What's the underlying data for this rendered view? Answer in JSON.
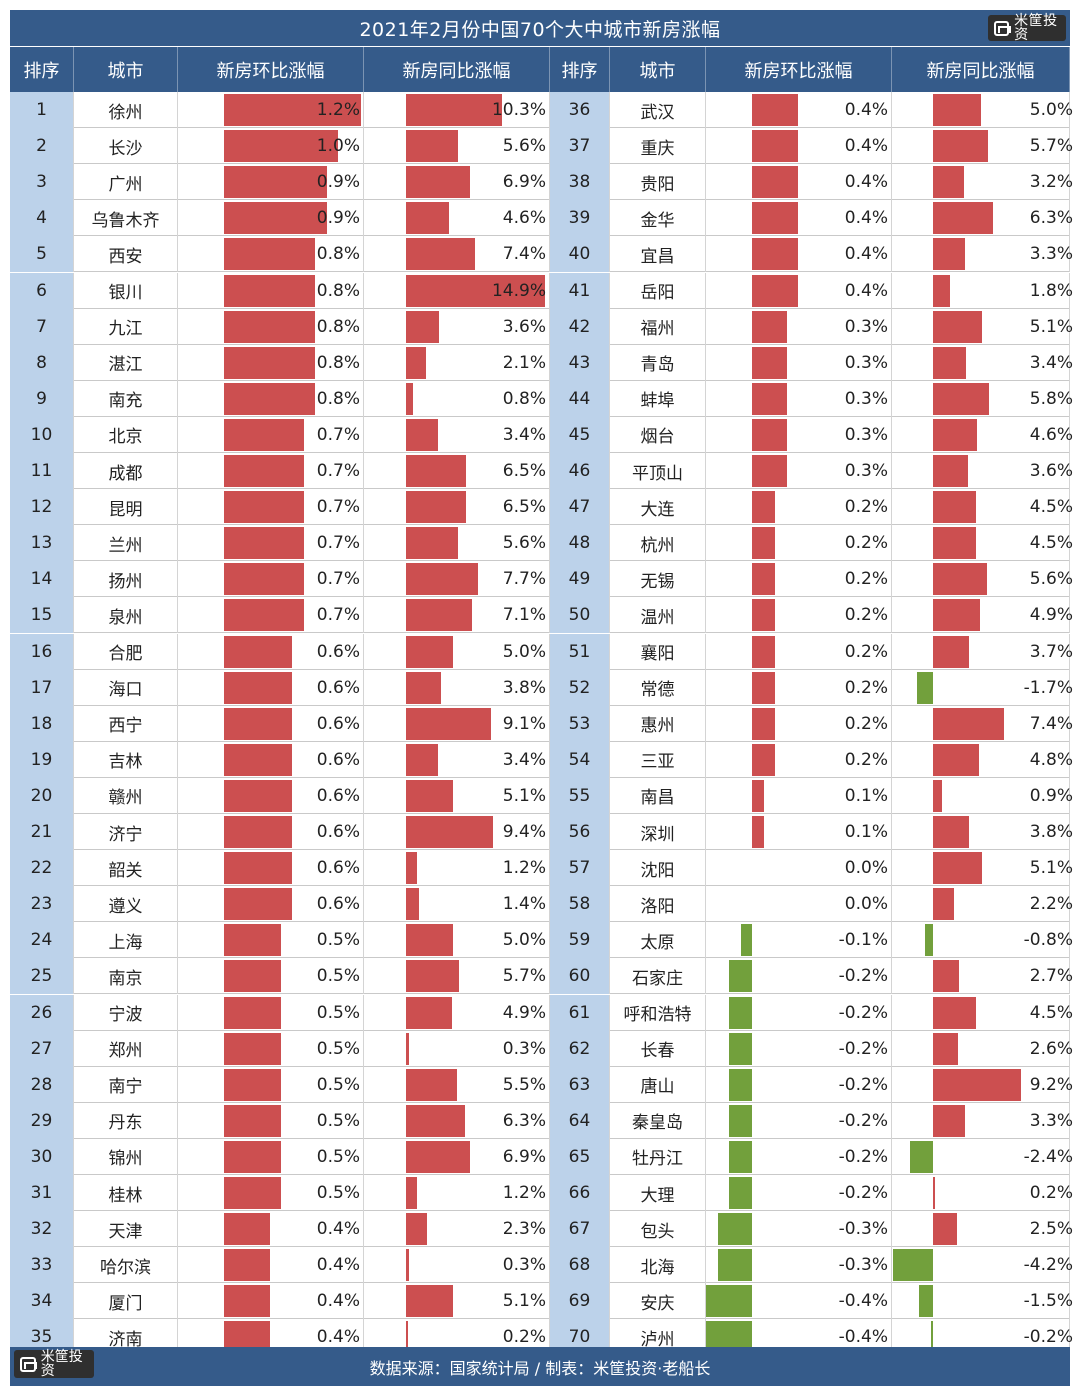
{
  "title": "2021年2月份中国70个大中城市新房涨幅",
  "logo_text": "米筐投资",
  "footer_text": "数据来源：国家统计局 / 制表：米筐投资·老船长",
  "headers": [
    "排序",
    "城市",
    "新房环比涨幅",
    "新房同比涨幅",
    "排序",
    "城市",
    "新房环比涨幅",
    "新房同比涨幅"
  ],
  "colors": {
    "header": "#355b8a",
    "positive": "#cc4f50",
    "negative": "#72a03c",
    "rank_bg": "#bcd2ea"
  },
  "chart_data": {
    "type": "table",
    "title": "2021年2月份中国70个大中城市新房涨幅",
    "columns": [
      "排序",
      "城市",
      "新房环比涨幅",
      "新房同比涨幅"
    ],
    "rows": [
      {
        "rank": "1",
        "city": "徐州",
        "mom": 1.2,
        "yoy": 10.3
      },
      {
        "rank": "2",
        "city": "长沙",
        "mom": 1.0,
        "yoy": 5.6
      },
      {
        "rank": "3",
        "city": "广州",
        "mom": 0.9,
        "yoy": 6.9
      },
      {
        "rank": "4",
        "city": "乌鲁木齐",
        "mom": 0.9,
        "yoy": 4.6
      },
      {
        "rank": "5",
        "city": "西安",
        "mom": 0.8,
        "yoy": 7.4
      },
      {
        "rank": "6",
        "city": "银川",
        "mom": 0.8,
        "yoy": 14.9
      },
      {
        "rank": "7",
        "city": "九江",
        "mom": 0.8,
        "yoy": 3.6
      },
      {
        "rank": "8",
        "city": "湛江",
        "mom": 0.8,
        "yoy": 2.1
      },
      {
        "rank": "9",
        "city": "南充",
        "mom": 0.8,
        "yoy": 0.8
      },
      {
        "rank": "10",
        "city": "北京",
        "mom": 0.7,
        "yoy": 3.4
      },
      {
        "rank": "11",
        "city": "成都",
        "mom": 0.7,
        "yoy": 6.5
      },
      {
        "rank": "12",
        "city": "昆明",
        "mom": 0.7,
        "yoy": 6.5
      },
      {
        "rank": "13",
        "city": "兰州",
        "mom": 0.7,
        "yoy": 5.6
      },
      {
        "rank": "14",
        "city": "扬州",
        "mom": 0.7,
        "yoy": 7.7
      },
      {
        "rank": "15",
        "city": "泉州",
        "mom": 0.7,
        "yoy": 7.1
      },
      {
        "rank": "16",
        "city": "合肥",
        "mom": 0.6,
        "yoy": 5.0
      },
      {
        "rank": "17",
        "city": "海口",
        "mom": 0.6,
        "yoy": 3.8
      },
      {
        "rank": "18",
        "city": "西宁",
        "mom": 0.6,
        "yoy": 9.1
      },
      {
        "rank": "19",
        "city": "吉林",
        "mom": 0.6,
        "yoy": 3.4
      },
      {
        "rank": "20",
        "city": "赣州",
        "mom": 0.6,
        "yoy": 5.1
      },
      {
        "rank": "21",
        "city": "济宁",
        "mom": 0.6,
        "yoy": 9.4
      },
      {
        "rank": "22",
        "city": "韶关",
        "mom": 0.6,
        "yoy": 1.2
      },
      {
        "rank": "23",
        "city": "遵义",
        "mom": 0.6,
        "yoy": 1.4
      },
      {
        "rank": "24",
        "city": "上海",
        "mom": 0.5,
        "yoy": 5.0
      },
      {
        "rank": "25",
        "city": "南京",
        "mom": 0.5,
        "yoy": 5.7
      },
      {
        "rank": "26",
        "city": "宁波",
        "mom": 0.5,
        "yoy": 4.9
      },
      {
        "rank": "27",
        "city": "郑州",
        "mom": 0.5,
        "yoy": 0.3
      },
      {
        "rank": "28",
        "city": "南宁",
        "mom": 0.5,
        "yoy": 5.5
      },
      {
        "rank": "29",
        "city": "丹东",
        "mom": 0.5,
        "yoy": 6.3
      },
      {
        "rank": "30",
        "city": "锦州",
        "mom": 0.5,
        "yoy": 6.9
      },
      {
        "rank": "31",
        "city": "桂林",
        "mom": 0.5,
        "yoy": 1.2
      },
      {
        "rank": "32",
        "city": "天津",
        "mom": 0.4,
        "yoy": 2.3
      },
      {
        "rank": "33",
        "city": "哈尔滨",
        "mom": 0.4,
        "yoy": 0.3
      },
      {
        "rank": "34",
        "city": "厦门",
        "mom": 0.4,
        "yoy": 5.1
      },
      {
        "rank": "35",
        "city": "济南",
        "mom": 0.4,
        "yoy": 0.2
      },
      {
        "rank": "36",
        "city": "武汉",
        "mom": 0.4,
        "yoy": 5.0
      },
      {
        "rank": "37",
        "city": "重庆",
        "mom": 0.4,
        "yoy": 5.7
      },
      {
        "rank": "38",
        "city": "贵阳",
        "mom": 0.4,
        "yoy": 3.2
      },
      {
        "rank": "39",
        "city": "金华",
        "mom": 0.4,
        "yoy": 6.3
      },
      {
        "rank": "40",
        "city": "宜昌",
        "mom": 0.4,
        "yoy": 3.3
      },
      {
        "rank": "41",
        "city": "岳阳",
        "mom": 0.4,
        "yoy": 1.8
      },
      {
        "rank": "42",
        "city": "福州",
        "mom": 0.3,
        "yoy": 5.1
      },
      {
        "rank": "43",
        "city": "青岛",
        "mom": 0.3,
        "yoy": 3.4
      },
      {
        "rank": "44",
        "city": "蚌埠",
        "mom": 0.3,
        "yoy": 5.8
      },
      {
        "rank": "45",
        "city": "烟台",
        "mom": 0.3,
        "yoy": 4.6
      },
      {
        "rank": "46",
        "city": "平顶山",
        "mom": 0.3,
        "yoy": 3.6
      },
      {
        "rank": "47",
        "city": "大连",
        "mom": 0.2,
        "yoy": 4.5
      },
      {
        "rank": "48",
        "city": "杭州",
        "mom": 0.2,
        "yoy": 4.5
      },
      {
        "rank": "49",
        "city": "无锡",
        "mom": 0.2,
        "yoy": 5.6
      },
      {
        "rank": "50",
        "city": "温州",
        "mom": 0.2,
        "yoy": 4.9
      },
      {
        "rank": "51",
        "city": "襄阳",
        "mom": 0.2,
        "yoy": 3.7
      },
      {
        "rank": "52",
        "city": "常德",
        "mom": 0.2,
        "yoy": -1.7
      },
      {
        "rank": "53",
        "city": "惠州",
        "mom": 0.2,
        "yoy": 7.4
      },
      {
        "rank": "54",
        "city": "三亚",
        "mom": 0.2,
        "yoy": 4.8
      },
      {
        "rank": "55",
        "city": "南昌",
        "mom": 0.1,
        "yoy": 0.9
      },
      {
        "rank": "56",
        "city": "深圳",
        "mom": 0.1,
        "yoy": 3.8
      },
      {
        "rank": "57",
        "city": "沈阳",
        "mom": 0.0,
        "yoy": 5.1
      },
      {
        "rank": "58",
        "city": "洛阳",
        "mom": 0.0,
        "yoy": 2.2
      },
      {
        "rank": "59",
        "city": "太原",
        "mom": -0.1,
        "yoy": -0.8
      },
      {
        "rank": "60",
        "city": "石家庄",
        "mom": -0.2,
        "yoy": 2.7
      },
      {
        "rank": "61",
        "city": "呼和浩特",
        "mom": -0.2,
        "yoy": 4.5
      },
      {
        "rank": "62",
        "city": "长春",
        "mom": -0.2,
        "yoy": 2.6
      },
      {
        "rank": "63",
        "city": "唐山",
        "mom": -0.2,
        "yoy": 9.2
      },
      {
        "rank": "64",
        "city": "秦皇岛",
        "mom": -0.2,
        "yoy": 3.3
      },
      {
        "rank": "65",
        "city": "牡丹江",
        "mom": -0.2,
        "yoy": -2.4
      },
      {
        "rank": "66",
        "city": "大理",
        "mom": -0.2,
        "yoy": 0.2
      },
      {
        "rank": "67",
        "city": "包头",
        "mom": -0.3,
        "yoy": 2.5
      },
      {
        "rank": "68",
        "city": "北海",
        "mom": -0.3,
        "yoy": -4.2
      },
      {
        "rank": "69",
        "city": "安庆",
        "mom": -0.4,
        "yoy": -1.5
      },
      {
        "rank": "70",
        "city": "泸州",
        "mom": -0.4,
        "yoy": -0.2
      }
    ]
  }
}
